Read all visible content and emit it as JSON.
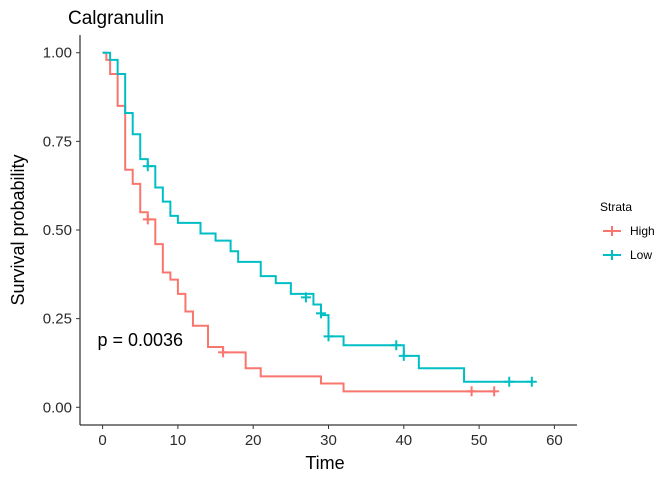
{
  "chart_data": {
    "type": "line",
    "title": "Calgranulin",
    "xlabel": "Time",
    "ylabel": "Survival probability",
    "xlim": [
      -3,
      63
    ],
    "ylim": [
      -0.05,
      1.05
    ],
    "xticks": [
      "0",
      "10",
      "20",
      "30",
      "40",
      "50",
      "60"
    ],
    "yticks": [
      "0.00",
      "0.25",
      "0.50",
      "0.75",
      "1.00"
    ],
    "xtick_values": [
      0,
      10,
      20,
      30,
      40,
      50,
      60
    ],
    "ytick_values": [
      0.0,
      0.25,
      0.5,
      0.75,
      1.0
    ],
    "grid": false,
    "legend_title": "Strata",
    "legend_position": "right",
    "annotation": "p = 0.0036",
    "annotation_at": [
      5,
      0.19
    ],
    "series": [
      {
        "name": "High",
        "color": "#F8766D",
        "steps": [
          [
            0,
            1.0
          ],
          [
            0.5,
            0.98
          ],
          [
            1,
            0.94
          ],
          [
            2,
            0.85
          ],
          [
            3,
            0.67
          ],
          [
            4,
            0.63
          ],
          [
            5,
            0.55
          ],
          [
            6,
            0.53
          ],
          [
            7,
            0.46
          ],
          [
            8,
            0.38
          ],
          [
            9,
            0.36
          ],
          [
            10,
            0.32
          ],
          [
            11,
            0.27
          ],
          [
            12,
            0.23
          ],
          [
            14,
            0.17
          ],
          [
            16,
            0.155
          ],
          [
            19,
            0.11
          ],
          [
            21,
            0.087
          ],
          [
            29,
            0.067
          ],
          [
            32,
            0.045
          ],
          [
            52,
            0.045
          ]
        ],
        "censored": [
          [
            6,
            0.53
          ],
          [
            16,
            0.155
          ],
          [
            49,
            0.045
          ],
          [
            52,
            0.045
          ]
        ]
      },
      {
        "name": "Low",
        "color": "#00BFC4",
        "steps": [
          [
            0,
            1.0
          ],
          [
            1,
            0.98
          ],
          [
            2,
            0.94
          ],
          [
            3,
            0.83
          ],
          [
            4,
            0.77
          ],
          [
            5,
            0.7
          ],
          [
            6,
            0.68
          ],
          [
            7,
            0.62
          ],
          [
            8,
            0.58
          ],
          [
            9,
            0.54
          ],
          [
            10,
            0.52
          ],
          [
            13,
            0.49
          ],
          [
            15,
            0.47
          ],
          [
            17,
            0.44
          ],
          [
            18,
            0.41
          ],
          [
            21,
            0.37
          ],
          [
            23,
            0.35
          ],
          [
            25,
            0.32
          ],
          [
            28,
            0.29
          ],
          [
            29,
            0.26
          ],
          [
            30,
            0.2
          ],
          [
            32,
            0.175
          ],
          [
            40,
            0.145
          ],
          [
            42,
            0.11
          ],
          [
            48,
            0.072
          ],
          [
            57,
            0.072
          ]
        ],
        "censored": [
          [
            6,
            0.68
          ],
          [
            27,
            0.31
          ],
          [
            29,
            0.265
          ],
          [
            30,
            0.2
          ],
          [
            39,
            0.175
          ],
          [
            40,
            0.145
          ],
          [
            54,
            0.072
          ],
          [
            57,
            0.072
          ]
        ]
      }
    ]
  }
}
